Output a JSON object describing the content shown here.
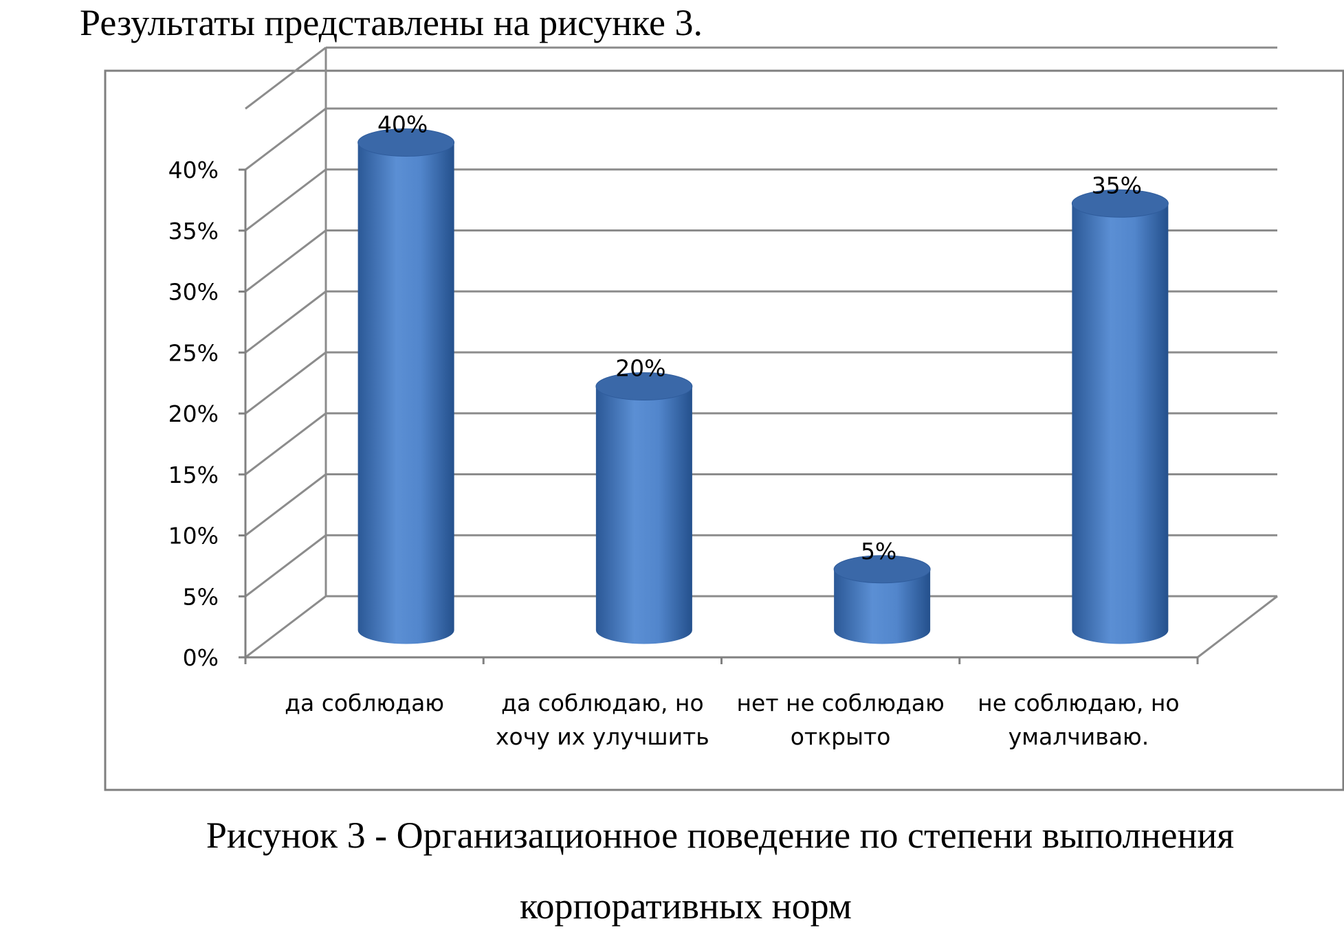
{
  "intro_text": "Результаты представлены на рисунке 3.",
  "caption": {
    "line1": "Рисунок 3 -  Организационное поведение по степени выполнения",
    "line2": "корпоративных норм"
  },
  "chart_data": {
    "type": "bar",
    "style": "3d-cylinder",
    "categories": [
      [
        "да соблюдаю"
      ],
      [
        "да соблюдаю, но",
        "хочу их улучшить"
      ],
      [
        "нет не соблюдаю",
        "открыто"
      ],
      [
        "не соблюдаю, но",
        "умалчиваю."
      ]
    ],
    "values": [
      40,
      20,
      5,
      35
    ],
    "data_labels": [
      "40%",
      "20%",
      "5%",
      "35%"
    ],
    "y_ticks": [
      "0%",
      "5%",
      "10%",
      "15%",
      "20%",
      "25%",
      "30%",
      "35%",
      "40%"
    ],
    "ylim": [
      0,
      40
    ],
    "grid": true,
    "legend": "none",
    "colors": {
      "bar_mid": "#5b8fd4",
      "bar_dark": "#2b5896",
      "bar_top": "#3a68a8",
      "grid": "#8c8c8c",
      "frame": "#7f7f7f"
    }
  }
}
